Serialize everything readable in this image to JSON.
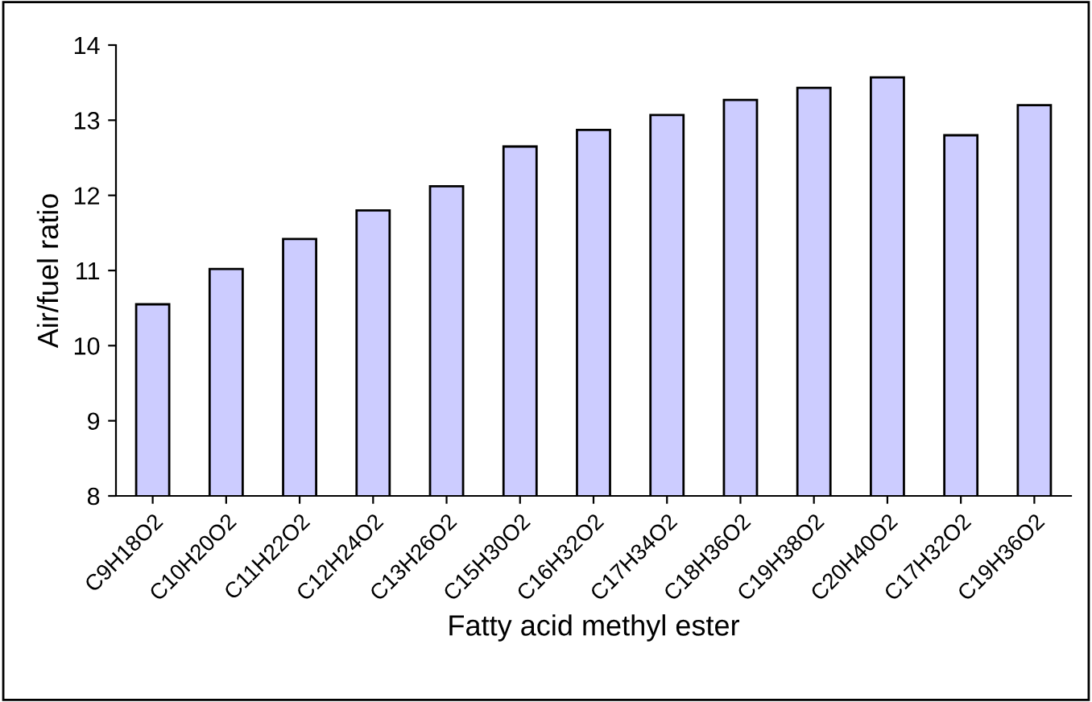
{
  "chart_data": {
    "type": "bar",
    "xlabel": "Fatty acid methyl ester",
    "ylabel": "Air/fuel ratio",
    "categories": [
      "C9H18O2",
      "C10H20O2",
      "C11H22O2",
      "C12H24O2",
      "C13H26O2",
      "C15H30O2",
      "C16H32O2",
      "C17H34O2",
      "C18H36O2",
      "C19H38O2",
      "C20H40O2",
      "C17H32O2",
      "C19H36O2"
    ],
    "values": [
      10.55,
      11.02,
      11.42,
      11.8,
      12.12,
      12.65,
      12.87,
      13.07,
      13.27,
      13.43,
      13.57,
      12.8,
      13.2
    ],
    "color": "#ccccff",
    "ylim": [
      8,
      14
    ],
    "yticks": [
      8,
      9,
      10,
      11,
      12,
      13,
      14
    ],
    "grid": false,
    "legend": false
  }
}
